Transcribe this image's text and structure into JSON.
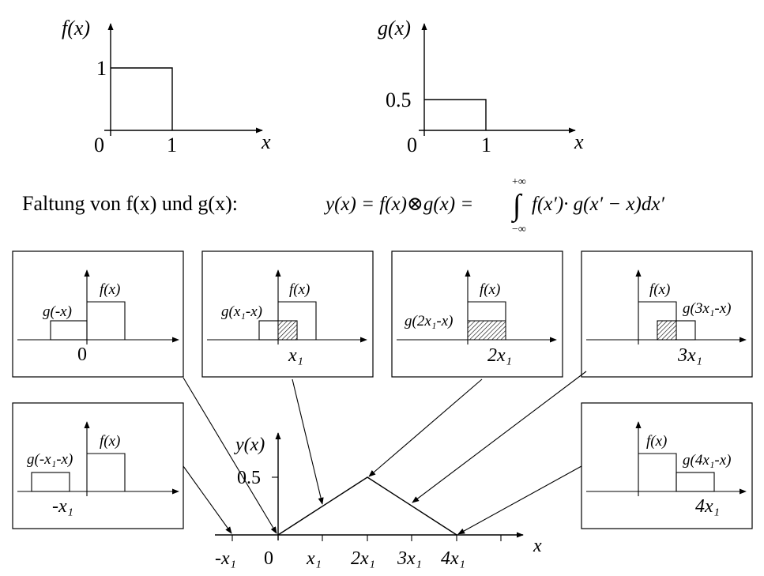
{
  "top_f": {
    "ylabel": "f(x)",
    "xlabel": "x",
    "y_tick": "1",
    "x_ticks": [
      "0",
      "1"
    ],
    "height": 1,
    "width": 1
  },
  "top_g": {
    "ylabel": "g(x)",
    "xlabel": "x",
    "y_tick": "0.5",
    "x_ticks": [
      "0",
      "1"
    ],
    "height": 0.5,
    "width": 1
  },
  "formula": {
    "lead": "Faltung von f(x) und g(x):",
    "expr_left": "y(x) = f(x)⊗g(x) =",
    "integral_upper": "+∞",
    "integral_lower": "−∞",
    "integrand": "f(x′)· g(x′ − x)dx′"
  },
  "panels": [
    {
      "id": "shift-0",
      "g_label": "g(-x)",
      "f_label": "f(x)",
      "x_label": "0"
    },
    {
      "id": "shift-1",
      "g_label": "g(x₁-x)",
      "f_label": "f(x)",
      "x_label": "x₁"
    },
    {
      "id": "shift-2",
      "g_label": "g(2x₁-x)",
      "f_label": "f(x)",
      "x_label": "2x₁"
    },
    {
      "id": "shift-3",
      "g_label": "g(3x₁-x)",
      "f_label": "f(x)",
      "x_label": "3x₁"
    },
    {
      "id": "shift-neg1",
      "g_label": "g(-x₁-x)",
      "f_label": "f(x)",
      "x_label": "-x₁"
    },
    {
      "id": "shift-4",
      "g_label": "g(4x₁-x)",
      "f_label": "f(x)",
      "x_label": "4x₁"
    }
  ],
  "result": {
    "ylabel": "y(x)",
    "xlabel": "x",
    "y_tick": "0.5",
    "x_ticks": [
      "-x₁",
      "0",
      "x₁",
      "2x₁",
      "3x₁",
      "4x₁"
    ],
    "peak": 0.5
  }
}
